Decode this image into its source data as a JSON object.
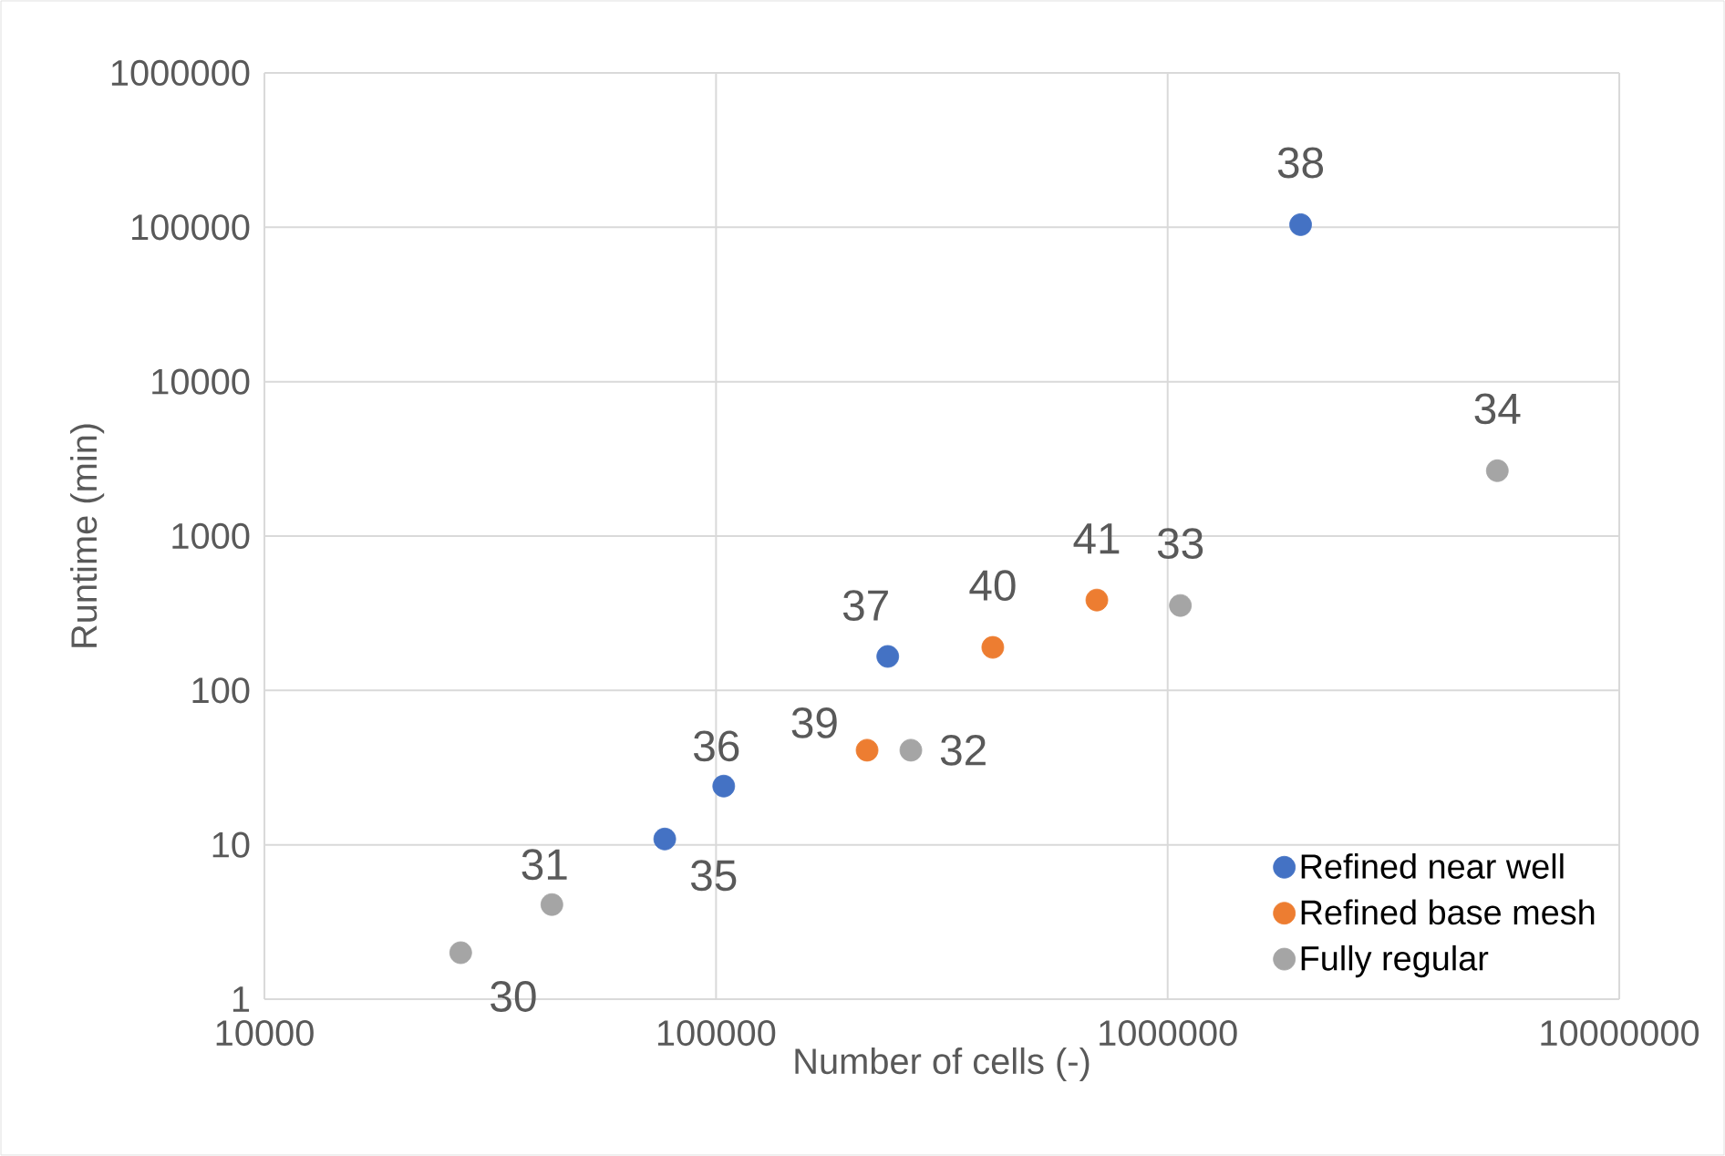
{
  "chart_data": {
    "type": "scatter",
    "xlabel": "Number of cells (-)",
    "ylabel": "Runtime (min)",
    "log": "xy",
    "xlim": [
      10000,
      10000000
    ],
    "ylim": [
      1,
      1000000
    ],
    "xticks": [
      10000,
      100000,
      1000000,
      10000000
    ],
    "yticks": [
      1,
      10,
      100,
      1000,
      10000,
      100000,
      1000000
    ],
    "grid": true,
    "legend": "bottom right",
    "marker": "circle",
    "series": [
      {
        "name": "Refined near well",
        "color": "#4472c4",
        "x": [
          77000,
          104000,
          240000,
          1970000
        ],
        "values": [
          10.9,
          24,
          166,
          104000
        ]
      },
      {
        "name": "Refined base mesh",
        "color": "#ed7d31",
        "x": [
          216000,
          410000,
          697000
        ],
        "values": [
          41,
          190,
          385
        ]
      },
      {
        "name": "Fully regular",
        "color": "#a5a5a5",
        "x": [
          27200,
          43300,
          270000,
          1067000,
          5370000
        ],
        "values": [
          2.0,
          4.1,
          41,
          355,
          2650
        ]
      }
    ],
    "annotations": [
      {
        "text": "30",
        "x": 27200,
        "y": 2.0
      },
      {
        "text": "31",
        "x": 43300,
        "y": 4.1
      },
      {
        "text": "32",
        "x": 270000,
        "y": 41
      },
      {
        "text": "33",
        "x": 1067000,
        "y": 355
      },
      {
        "text": "34",
        "x": 5370000,
        "y": 2650
      },
      {
        "text": "35",
        "x": 77000,
        "y": 10.9
      },
      {
        "text": "36",
        "x": 104000,
        "y": 24
      },
      {
        "text": "37",
        "x": 240000,
        "y": 166
      },
      {
        "text": "38",
        "x": 1970000,
        "y": 104000
      },
      {
        "text": "39",
        "x": 216000,
        "y": 41
      },
      {
        "text": "40",
        "x": 410000,
        "y": 190
      },
      {
        "text": "41",
        "x": 697000,
        "y": 385
      }
    ]
  }
}
